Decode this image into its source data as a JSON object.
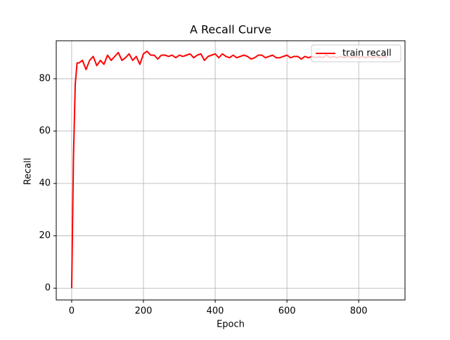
{
  "chart_data": {
    "type": "line",
    "title": "A Recall Curve",
    "xlabel": "Epoch",
    "ylabel": "Recall",
    "x": [
      0,
      5,
      10,
      15,
      20,
      30,
      40,
      50,
      60,
      70,
      80,
      90,
      100,
      110,
      120,
      130,
      140,
      150,
      160,
      170,
      180,
      190,
      200,
      210,
      220,
      230,
      240,
      250,
      260,
      270,
      280,
      290,
      300,
      310,
      320,
      330,
      340,
      350,
      360,
      370,
      380,
      390,
      400,
      410,
      420,
      430,
      440,
      450,
      460,
      470,
      480,
      490,
      500,
      510,
      520,
      530,
      540,
      550,
      560,
      570,
      580,
      590,
      600,
      610,
      620,
      630,
      640,
      650,
      660,
      670,
      680,
      690,
      700,
      710,
      720,
      730,
      740,
      750,
      760,
      770,
      780,
      790,
      800,
      810,
      820,
      830,
      840,
      850,
      860,
      870,
      880
    ],
    "series": [
      {
        "name": "train recall",
        "color": "#ff0000",
        "values": [
          0,
          50,
          78,
          86,
          86,
          87,
          83.5,
          87,
          88.5,
          85,
          87,
          85.5,
          89,
          87,
          88.5,
          90,
          87,
          88,
          89.5,
          87,
          88.5,
          85.5,
          89.5,
          90.5,
          89,
          89,
          87.5,
          89,
          89,
          88.5,
          89,
          88,
          89,
          88.5,
          89,
          89.5,
          88,
          89,
          89.5,
          87,
          88.5,
          89,
          89.5,
          88,
          89.5,
          88.5,
          88,
          89,
          88,
          88.5,
          89,
          88.5,
          87.5,
          88,
          89,
          89,
          88,
          88.5,
          89,
          88,
          88,
          88.5,
          89,
          88,
          88.5,
          88.5,
          87.5,
          88.5,
          88,
          88.5,
          88,
          88.5,
          88,
          89,
          88,
          88.5,
          88,
          88.5,
          88,
          88.5,
          88,
          88.5,
          88,
          88.5,
          88,
          88.5,
          88,
          88.5,
          88,
          88.5,
          88
        ]
      }
    ],
    "xlim": [
      -43,
      929
    ],
    "ylim": [
      -4.5,
      94.5
    ],
    "xticks": [
      0,
      200,
      400,
      600,
      800
    ],
    "yticks": [
      0,
      20,
      40,
      60,
      80
    ],
    "grid": true,
    "legend": "upper right"
  }
}
